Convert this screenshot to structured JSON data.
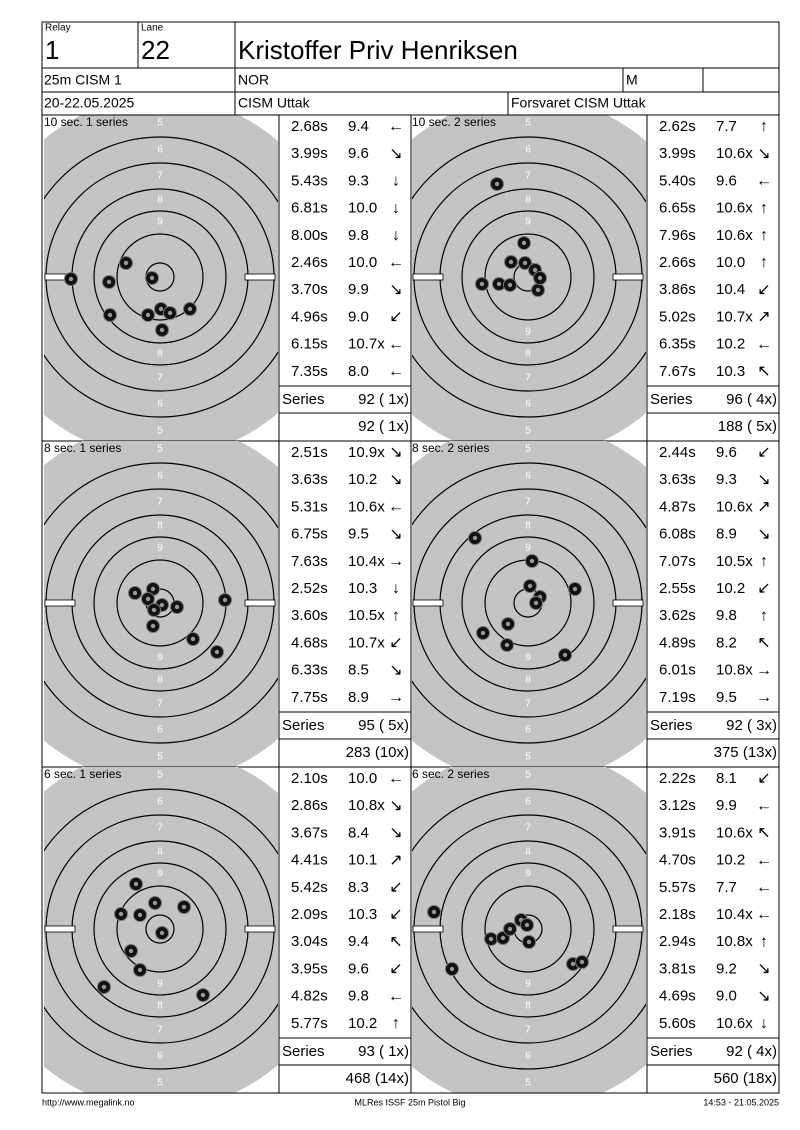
{
  "header": {
    "relay_label": "Relay",
    "relay": "1",
    "lane_label": "Lane",
    "lane": "22",
    "name": "Kristoffer Priv Henriksen",
    "event": "25m CISM 1",
    "nation": "NOR",
    "gender": "M",
    "date": "20-22.05.2025",
    "competition": "CISM Uttak",
    "club": "Forsvaret CISM Uttak"
  },
  "ring_labels": [
    "5",
    "6",
    "7",
    "8",
    "9"
  ],
  "panels": [
    {
      "title": "10 sec. 1 series",
      "shots": [
        {
          "time": "2.68s",
          "score": "9.4",
          "dir": "←"
        },
        {
          "time": "3.99s",
          "score": "9.6",
          "dir": "↘"
        },
        {
          "time": "5.43s",
          "score": "9.3",
          "dir": "↓"
        },
        {
          "time": "6.81s",
          "score": "10.0",
          "dir": "↓"
        },
        {
          "time": "8.00s",
          "score": "9.8",
          "dir": "↓"
        },
        {
          "time": "2.46s",
          "score": "10.0",
          "dir": "←"
        },
        {
          "time": "3.70s",
          "score": "9.9",
          "dir": "↘"
        },
        {
          "time": "4.96s",
          "score": "9.0",
          "dir": "↙"
        },
        {
          "time": "6.15s",
          "score": "10.7x",
          "dir": "←"
        },
        {
          "time": "7.35s",
          "score": "8.0",
          "dir": "←"
        }
      ],
      "series_label": "Series",
      "series": "92 ( 1x)",
      "total": "92 ( 1x)"
    },
    {
      "title": "10 sec. 2 series",
      "shots": [
        {
          "time": "2.62s",
          "score": "7.7",
          "dir": "↑"
        },
        {
          "time": "3.99s",
          "score": "10.6x",
          "dir": "↘"
        },
        {
          "time": "5.40s",
          "score": "9.6",
          "dir": "←"
        },
        {
          "time": "6.65s",
          "score": "10.6x",
          "dir": "↑"
        },
        {
          "time": "7.96s",
          "score": "10.6x",
          "dir": "↑"
        },
        {
          "time": "2.66s",
          "score": "10.0",
          "dir": "↑"
        },
        {
          "time": "3.86s",
          "score": "10.4",
          "dir": "↙"
        },
        {
          "time": "5.02s",
          "score": "10.7x",
          "dir": "↗"
        },
        {
          "time": "6.35s",
          "score": "10.2",
          "dir": "←"
        },
        {
          "time": "7.67s",
          "score": "10.3",
          "dir": "↖"
        }
      ],
      "series_label": "Series",
      "series": "96 ( 4x)",
      "total": "188 ( 5x)"
    },
    {
      "title": "8 sec. 1 series",
      "shots": [
        {
          "time": "2.51s",
          "score": "10.9x",
          "dir": "↘"
        },
        {
          "time": "3.63s",
          "score": "10.2",
          "dir": "↘"
        },
        {
          "time": "5.31s",
          "score": "10.6x",
          "dir": "←"
        },
        {
          "time": "6.75s",
          "score": "9.5",
          "dir": "↘"
        },
        {
          "time": "7.63s",
          "score": "10.4x",
          "dir": "→"
        },
        {
          "time": "2.52s",
          "score": "10.3",
          "dir": "↓"
        },
        {
          "time": "3.60s",
          "score": "10.5x",
          "dir": "↑"
        },
        {
          "time": "4.68s",
          "score": "10.7x",
          "dir": "↙"
        },
        {
          "time": "6.33s",
          "score": "8.5",
          "dir": "↘"
        },
        {
          "time": "7.75s",
          "score": "8.9",
          "dir": "→"
        }
      ],
      "series_label": "Series",
      "series": "95 ( 5x)",
      "total": "283 (10x)"
    },
    {
      "title": "8 sec. 2 series",
      "shots": [
        {
          "time": "2.44s",
          "score": "9.6",
          "dir": "↙"
        },
        {
          "time": "3.63s",
          "score": "9.3",
          "dir": "↘"
        },
        {
          "time": "4.87s",
          "score": "10.6x",
          "dir": "↗"
        },
        {
          "time": "6.08s",
          "score": "8.9",
          "dir": "↘"
        },
        {
          "time": "7.07s",
          "score": "10.5x",
          "dir": "↑"
        },
        {
          "time": "2.55s",
          "score": "10.2",
          "dir": "↙"
        },
        {
          "time": "3.62s",
          "score": "9.8",
          "dir": "↑"
        },
        {
          "time": "4.89s",
          "score": "8.2",
          "dir": "↖"
        },
        {
          "time": "6.01s",
          "score": "10.8x",
          "dir": "→"
        },
        {
          "time": "7.19s",
          "score": "9.5",
          "dir": "→"
        }
      ],
      "series_label": "Series",
      "series": "92 ( 3x)",
      "total": "375 (13x)"
    },
    {
      "title": "6 sec. 1 series",
      "shots": [
        {
          "time": "2.10s",
          "score": "10.0",
          "dir": "←"
        },
        {
          "time": "2.86s",
          "score": "10.8x",
          "dir": "↘"
        },
        {
          "time": "3.67s",
          "score": "8.4",
          "dir": "↘"
        },
        {
          "time": "4.41s",
          "score": "10.1",
          "dir": "↗"
        },
        {
          "time": "5.42s",
          "score": "8.3",
          "dir": "↙"
        },
        {
          "time": "2.09s",
          "score": "10.3",
          "dir": "↙"
        },
        {
          "time": "3.04s",
          "score": "9.4",
          "dir": "↖"
        },
        {
          "time": "3.95s",
          "score": "9.6",
          "dir": "↙"
        },
        {
          "time": "4.82s",
          "score": "9.8",
          "dir": "←"
        },
        {
          "time": "5.77s",
          "score": "10.2",
          "dir": "↑"
        }
      ],
      "series_label": "Series",
      "series": "93 ( 1x)",
      "total": "468 (14x)"
    },
    {
      "title": "6 sec. 2 series",
      "shots": [
        {
          "time": "2.22s",
          "score": "8.1",
          "dir": "↙"
        },
        {
          "time": "3.12s",
          "score": "9.9",
          "dir": "←"
        },
        {
          "time": "3.91s",
          "score": "10.6x",
          "dir": "↖"
        },
        {
          "time": "4.70s",
          "score": "10.2",
          "dir": "←"
        },
        {
          "time": "5.57s",
          "score": "7.7",
          "dir": "←"
        },
        {
          "time": "2.18s",
          "score": "10.4x",
          "dir": "←"
        },
        {
          "time": "2.94s",
          "score": "10.8x",
          "dir": "↑"
        },
        {
          "time": "3.81s",
          "score": "9.2",
          "dir": "↘"
        },
        {
          "time": "4.69s",
          "score": "9.0",
          "dir": "↘"
        },
        {
          "time": "5.60s",
          "score": "10.6x",
          "dir": "↓"
        }
      ],
      "series_label": "Series",
      "series": "92 ( 4x)",
      "total": "560 (18x)"
    }
  ],
  "footer": {
    "left": "http://www.megalink.no",
    "center": "MLRes ISSF 25m Pistol Big",
    "right": "14:53 - 21.05.2025"
  }
}
